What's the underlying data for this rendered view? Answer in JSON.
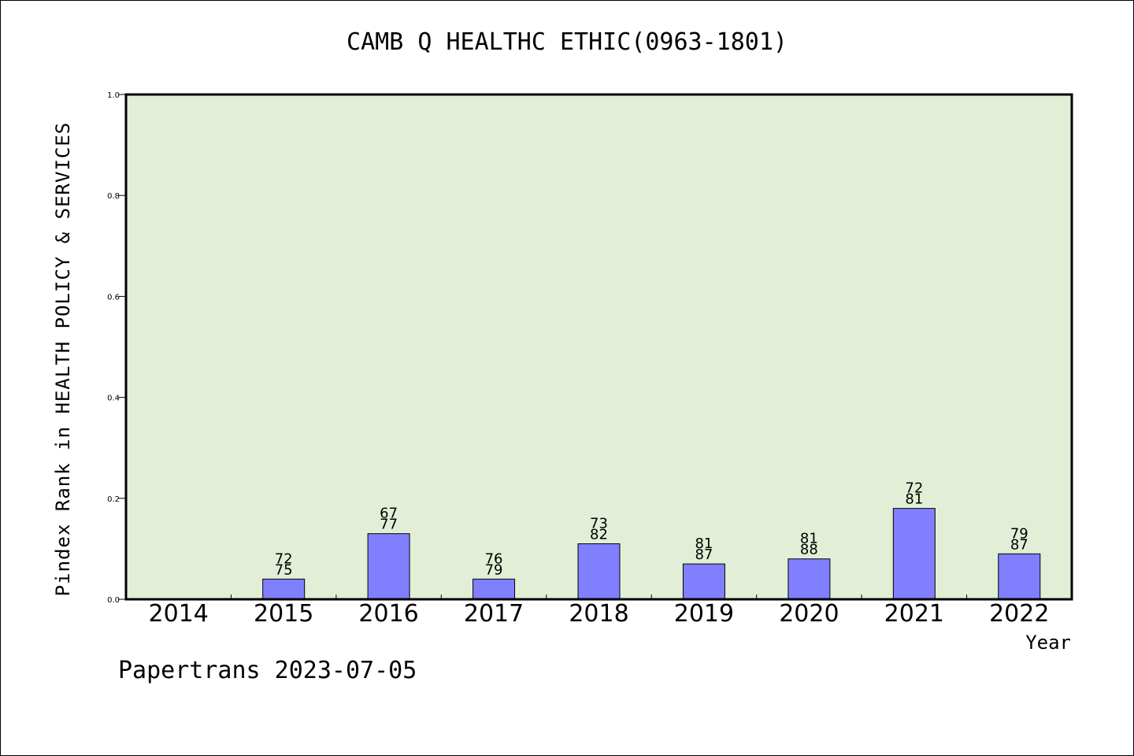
{
  "title": "CAMB Q HEALTHC ETHIC(0963-1801)",
  "footer": "Papertrans 2023-07-05",
  "colors": {
    "plot_background": "#e2efd6",
    "bar_fill": "#8080ff",
    "axis": "#000000"
  },
  "chart_data": {
    "type": "bar",
    "title": "CAMB Q HEALTHC ETHIC(0963-1801)",
    "xlabel": "Year",
    "ylabel": "Pindex Rank in HEALTH POLICY & SERVICES",
    "ylim": [
      0,
      1.0
    ],
    "yticks": [
      "0.0",
      "0.2",
      "0.4",
      "0.6",
      "0.8",
      "1.0"
    ],
    "grid": false,
    "categories": [
      "2014",
      "2015",
      "2016",
      "2017",
      "2018",
      "2019",
      "2020",
      "2021",
      "2022"
    ],
    "values": [
      null,
      0.04,
      0.13,
      0.04,
      0.11,
      0.07,
      0.08,
      0.18,
      0.09
    ],
    "labels_top": [
      "",
      "72",
      "67",
      "76",
      "73",
      "81",
      "81",
      "72",
      "79"
    ],
    "labels_bottom": [
      "",
      "75",
      "77",
      "79",
      "82",
      "87",
      "88",
      "81",
      "87"
    ]
  }
}
